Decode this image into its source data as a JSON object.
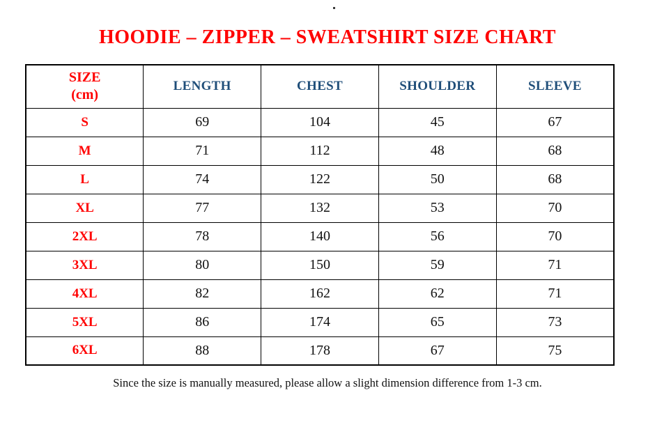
{
  "page": {
    "title": "HOODIE – ZIPPER – SWEATSHIRT SIZE CHART",
    "footnote": "Since the size is manually measured, please allow a slight dimension difference from 1-3 cm."
  },
  "table": {
    "unit_note": "cm",
    "headers": {
      "size": "SIZE\n(cm)",
      "length": "LENGTH",
      "chest": "CHEST",
      "shoulder": "SHOULDER",
      "sleeve": "SLEEVE"
    },
    "rows": [
      {
        "size": "S",
        "values": [
          "69",
          "104",
          "45",
          "67"
        ]
      },
      {
        "size": "M",
        "values": [
          "71",
          "112",
          "48",
          "68"
        ]
      },
      {
        "size": "L",
        "values": [
          "74",
          "122",
          "50",
          "68"
        ]
      },
      {
        "size": "XL",
        "values": [
          "77",
          "132",
          "53",
          "70"
        ]
      },
      {
        "size": "2XL",
        "values": [
          "78",
          "140",
          "56",
          "70"
        ]
      },
      {
        "size": "3XL",
        "values": [
          "80",
          "150",
          "59",
          "71"
        ]
      },
      {
        "size": "4XL",
        "values": [
          "82",
          "162",
          "62",
          "71"
        ]
      },
      {
        "size": "5XL",
        "values": [
          "86",
          "174",
          "65",
          "73"
        ]
      },
      {
        "size": "6XL",
        "values": [
          "88",
          "178",
          "67",
          "75"
        ]
      }
    ]
  },
  "colors": {
    "title_red": "#ff0000",
    "header_blue": "#1f4e79",
    "text_black": "#111111",
    "border_black": "#000000",
    "page_bg": "#ffffff"
  }
}
